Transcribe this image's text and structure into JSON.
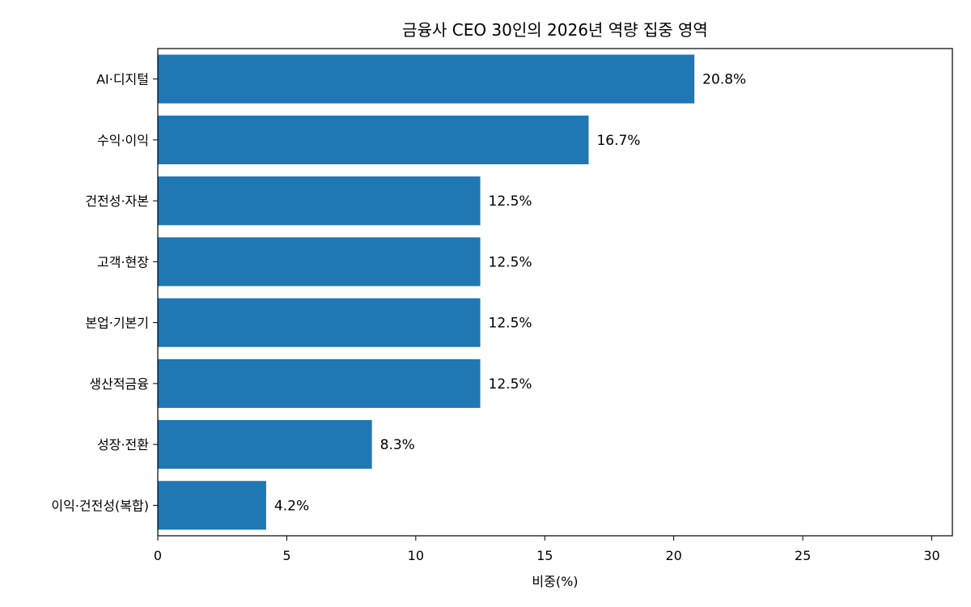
{
  "chart_data": {
    "type": "bar",
    "orientation": "horizontal",
    "title": "금융사 CEO 30인의 2026년 역량 집중 영역",
    "xlabel": "비중(%)",
    "ylabel": "",
    "xlim": [
      0,
      30.8
    ],
    "xticks": [
      0,
      5,
      10,
      15,
      20,
      25,
      30
    ],
    "grid": false,
    "legend": "none",
    "bar_color": "#1f77b4",
    "categories": [
      "AI·디지털",
      "수익·이익",
      "건전성·자본",
      "고객·현장",
      "본업·기본기",
      "생산적금융",
      "성장·전환",
      "이익·건전성(복합)"
    ],
    "values": [
      20.8,
      16.7,
      12.5,
      12.5,
      12.5,
      12.5,
      8.3,
      4.2
    ],
    "value_labels": [
      "20.8%",
      "16.7%",
      "12.5%",
      "12.5%",
      "12.5%",
      "12.5%",
      "8.3%",
      "4.2%"
    ]
  }
}
